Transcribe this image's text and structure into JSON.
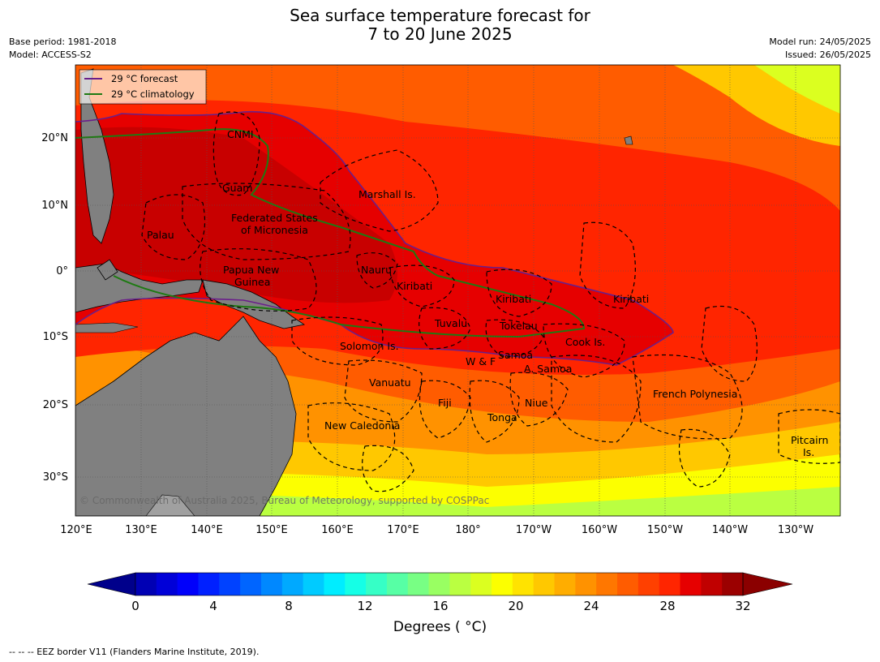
{
  "title_line1": "Sea surface temperature forecast for",
  "title_line2": "7 to 20 June 2025",
  "base_period": "Base period: 1981-2018",
  "model": "Model: ACCESS-S2",
  "model_run": "Model run: 24/05/2025",
  "issued": "Issued: 26/05/2025",
  "legend": {
    "forecast_label": "29 °C  forecast",
    "forecast_color": "#6a1f8a",
    "climatology_label": "29 °C  climatology",
    "climatology_color": "#1e7a12"
  },
  "copyright": "© Commonwealth of Australia 2025, Bureau of Meteorology, supported by COSPPac",
  "lon_labels": [
    "120°E",
    "130°E",
    "140°E",
    "150°E",
    "160°E",
    "170°E",
    "180°",
    "170°W",
    "160°W",
    "150°W",
    "140°W",
    "130°W"
  ],
  "lat_labels": [
    "20°N",
    "10°N",
    "0°",
    "10°S",
    "20°S",
    "30°S"
  ],
  "regions": {
    "cnmi": "CNMI",
    "guam": "Guam",
    "marshall": "Marshall Is.",
    "fsm1": "Federated States",
    "fsm2": "of Micronesia",
    "palau": "Palau",
    "png1": "Papua New",
    "png2": "Guinea",
    "nauru": "Nauru",
    "kiribati1": "Kiribati",
    "kiribati2": "Kiribati",
    "kiribati3": "Kiribati",
    "tuvalu": "Tuvalu",
    "tokelau": "Tokelau",
    "cook": "Cook Is.",
    "solomon": "Solomon Is.",
    "wf": "W & F",
    "samoa": "Samoa",
    "asamoa": "A. Samoa",
    "vanuatu": "Vanuatu",
    "fiji": "Fiji",
    "niue": "Niue",
    "tonga": "Tonga",
    "newcal": "New Caledonia",
    "frenchpoly": "French Polynesia",
    "pitcairn1": "Pitcairn",
    "pitcairn2": "Is."
  },
  "colorbar": {
    "ticks": [
      "0",
      "4",
      "8",
      "12",
      "16",
      "20",
      "24",
      "28",
      "32"
    ],
    "label": "Degrees ( °C)",
    "colors": [
      "#00008b",
      "#0000b4",
      "#0000d8",
      "#0000fb",
      "#0020ff",
      "#0042ff",
      "#0065ff",
      "#0088ff",
      "#00a9ff",
      "#00cbff",
      "#00edff",
      "#15ffe6",
      "#36ffc6",
      "#57ffa5",
      "#78ff84",
      "#99ff62",
      "#baff41",
      "#dbff20",
      "#fcff00",
      "#ffe300",
      "#ffc800",
      "#ffad00",
      "#ff9200",
      "#ff7700",
      "#ff5c00",
      "#ff4000",
      "#ff2500",
      "#e60000",
      "#c00000",
      "#9b0000",
      "#8b0000"
    ]
  },
  "footer": "--  --  -- EEZ border V11 (Flanders Marine Institute, 2019)."
}
